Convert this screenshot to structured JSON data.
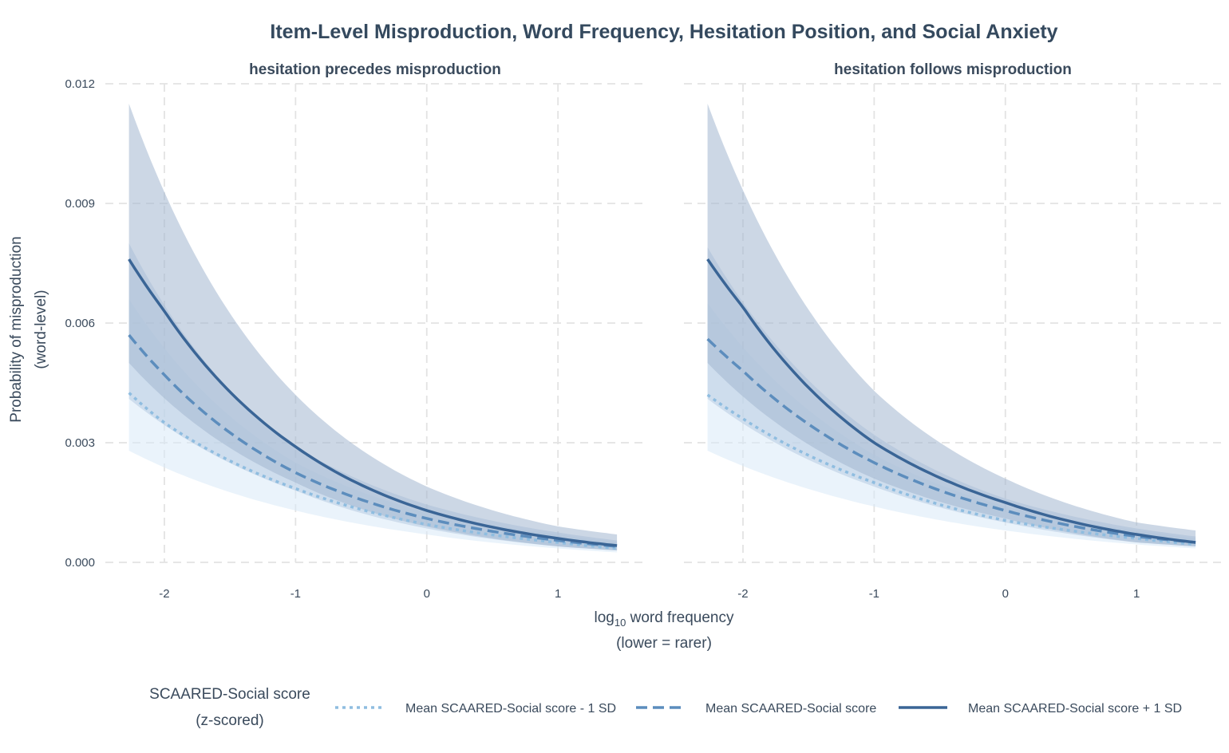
{
  "chart_data": {
    "type": "line",
    "title": "Item-Level Misproduction, Word Frequency, Hesitation Position, and Social Anxiety",
    "xlabel": {
      "prefix": "log",
      "sub": "10",
      "suffix": " word frequency",
      "line2": "(lower = rarer)"
    },
    "ylabel": [
      "Probability of misproduction",
      "(word-level)"
    ],
    "xlim": [
      -2.45,
      1.65
    ],
    "ylim": [
      -0.0005,
      0.012
    ],
    "x_ticks": [
      -2,
      -1,
      0,
      1
    ],
    "x_tick_labels": [
      "-2",
      "-1",
      "0",
      "1"
    ],
    "y_ticks": [
      0,
      0.003,
      0.006,
      0.009,
      0.012
    ],
    "y_tick_labels": [
      "0.000",
      "0.003",
      "0.006",
      "0.009",
      "0.012"
    ],
    "x_range": [
      -2.27,
      1.45
    ],
    "grid": true,
    "legend": {
      "position": "bottom",
      "title": [
        "SCAARED-Social score",
        "(z-scored)"
      ],
      "entries": [
        "Mean SCAARED-Social score - 1 SD",
        "Mean SCAARED-Social score",
        "Mean SCAARED-Social score + 1 SD"
      ]
    },
    "panels": [
      {
        "title": "hesitation precedes misproduction",
        "series": [
          {
            "name": "Mean SCAARED-Social score - 1 SD",
            "color": "#8fbde0",
            "dash": "dotted",
            "points": [
              [
                -2.27,
                0.00425
              ],
              [
                -2.0,
                0.0035
              ],
              [
                -1.0,
                0.00185
              ],
              [
                0.0,
                0.00095
              ],
              [
                1.0,
                0.0005
              ],
              [
                1.45,
                0.00035
              ]
            ],
            "ci": [
              [
                -2.27,
                0.0028,
                0.0066
              ],
              [
                -1.0,
                0.0013,
                0.0025
              ],
              [
                0.0,
                0.0007,
                0.00125
              ],
              [
                1.0,
                0.00035,
                0.0007
              ],
              [
                1.45,
                0.00025,
                0.0005
              ]
            ]
          },
          {
            "name": "Mean SCAARED-Social score",
            "color": "#5c8dbd",
            "dash": "dashed",
            "points": [
              [
                -2.27,
                0.0057
              ],
              [
                -2.0,
                0.0047
              ],
              [
                -1.0,
                0.00225
              ],
              [
                0.0,
                0.0011
              ],
              [
                1.0,
                0.00055
              ],
              [
                1.45,
                0.0004
              ]
            ],
            "ci": [
              [
                -2.27,
                0.0041,
                0.008
              ],
              [
                -1.0,
                0.0018,
                0.0029
              ],
              [
                0.0,
                0.00085,
                0.00145
              ],
              [
                1.0,
                0.0004,
                0.00075
              ],
              [
                1.45,
                0.0003,
                0.00055
              ]
            ]
          },
          {
            "name": "Mean SCAARED-Social score + 1 SD",
            "color": "#3a6596",
            "dash": "solid",
            "points": [
              [
                -2.27,
                0.0076
              ],
              [
                -2.0,
                0.0063
              ],
              [
                -1.0,
                0.0029
              ],
              [
                0.0,
                0.0013
              ],
              [
                1.0,
                0.0006
              ],
              [
                1.45,
                0.00042
              ]
            ],
            "ci": [
              [
                -2.27,
                0.005,
                0.0115
              ],
              [
                -1.0,
                0.002,
                0.0042
              ],
              [
                0.0,
                0.0009,
                0.0019
              ],
              [
                1.0,
                0.0004,
                0.0009
              ],
              [
                1.45,
                0.0003,
                0.0007
              ]
            ]
          }
        ]
      },
      {
        "title": "hesitation follows misproduction",
        "series": [
          {
            "name": "Mean SCAARED-Social score - 1 SD",
            "color": "#8fbde0",
            "dash": "dotted",
            "points": [
              [
                -2.27,
                0.0042
              ],
              [
                -2.0,
                0.0036
              ],
              [
                -1.0,
                0.002
              ],
              [
                0.0,
                0.00105
              ],
              [
                1.0,
                0.0006
              ],
              [
                1.45,
                0.00045
              ]
            ],
            "ci": [
              [
                -2.27,
                0.0028,
                0.0065
              ],
              [
                -1.0,
                0.0014,
                0.0027
              ],
              [
                0.0,
                0.0008,
                0.0014
              ],
              [
                1.0,
                0.00045,
                0.0008
              ],
              [
                1.45,
                0.00035,
                0.0006
              ]
            ]
          },
          {
            "name": "Mean SCAARED-Social score",
            "color": "#5c8dbd",
            "dash": "dashed",
            "points": [
              [
                -2.27,
                0.0056
              ],
              [
                -2.0,
                0.0048
              ],
              [
                -1.0,
                0.0025
              ],
              [
                0.0,
                0.0013
              ],
              [
                1.0,
                0.00065
              ],
              [
                1.45,
                0.0005
              ]
            ],
            "ci": [
              [
                -2.27,
                0.0041,
                0.0079
              ],
              [
                -1.0,
                0.0019,
                0.0032
              ],
              [
                0.0,
                0.001,
                0.0016
              ],
              [
                1.0,
                0.0005,
                0.00085
              ],
              [
                1.45,
                0.0004,
                0.00065
              ]
            ]
          },
          {
            "name": "Mean SCAARED-Social score + 1 SD",
            "color": "#3a6596",
            "dash": "solid",
            "points": [
              [
                -2.27,
                0.0076
              ],
              [
                -2.0,
                0.0064
              ],
              [
                -1.0,
                0.003
              ],
              [
                0.0,
                0.0015
              ],
              [
                1.0,
                0.0007
              ],
              [
                1.45,
                0.0005
              ]
            ],
            "ci": [
              [
                -2.27,
                0.005,
                0.0115
              ],
              [
                -1.0,
                0.0021,
                0.0043
              ],
              [
                0.0,
                0.0011,
                0.0021
              ],
              [
                1.0,
                0.0005,
                0.001
              ],
              [
                1.45,
                0.0004,
                0.0008
              ]
            ]
          }
        ]
      }
    ],
    "band_colors": [
      "#d9e9f8",
      "#b7cbe2",
      "#a3b7d0"
    ]
  }
}
